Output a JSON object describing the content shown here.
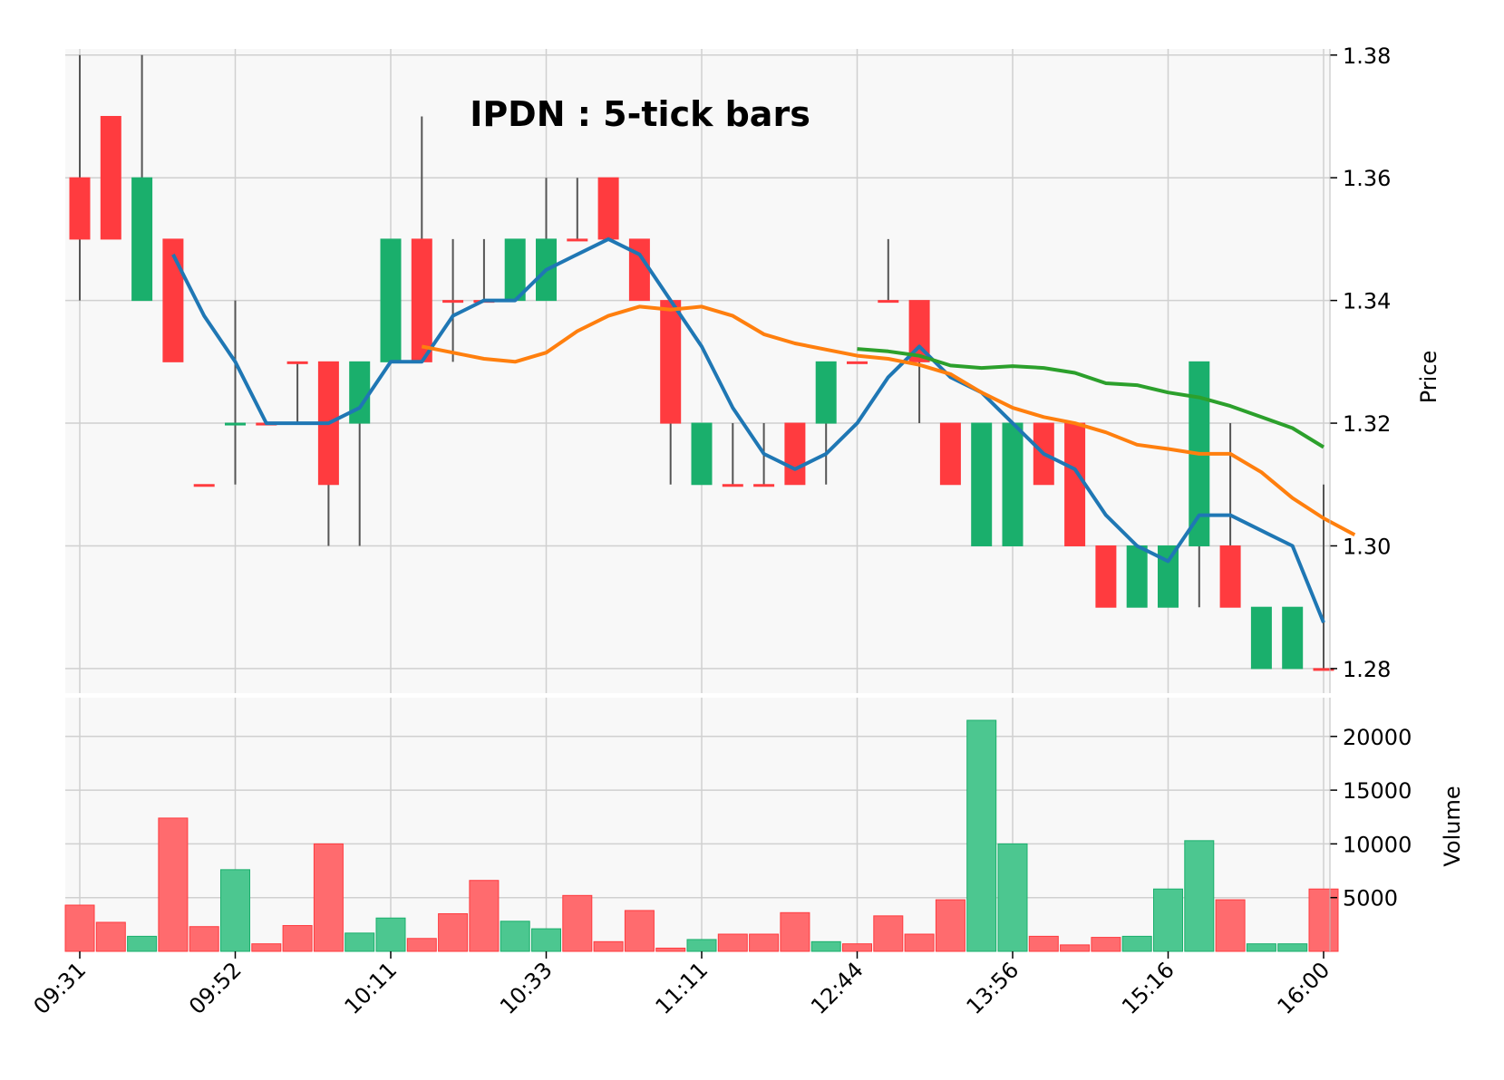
{
  "chart_data": {
    "type": "candlestick",
    "title": "IPDN : 5-tick bars",
    "ylabel_price": "Price",
    "ylabel_volume": "Volume",
    "price_ylim": [
      1.276,
      1.381
    ],
    "volume_ylim": [
      0,
      21500
    ],
    "price_ticks": [
      "1.28",
      "1.30",
      "1.32",
      "1.34",
      "1.36",
      "1.38"
    ],
    "price_tick_values": [
      1.28,
      1.3,
      1.32,
      1.34,
      1.36,
      1.38
    ],
    "volume_ticks": [
      "5000",
      "10000",
      "15000",
      "20000"
    ],
    "volume_tick_values": [
      5000,
      10000,
      15000,
      20000
    ],
    "x_ticks": [
      "09:31",
      "09:52",
      "10:11",
      "10:33",
      "11:11",
      "12:44",
      "13:56",
      "15:16",
      "16:00"
    ],
    "x_tick_index": [
      0,
      5,
      10,
      15,
      20,
      25,
      30,
      35,
      40
    ],
    "grid": true,
    "colors": {
      "up": "#1aaf6c",
      "down": "#ff3b3f",
      "vol_up": "#4cc790",
      "vol_down": "#ff6b6e",
      "wick": "#555555",
      "ma_short": "#1f77b4",
      "ma_mid": "#ff7f0e",
      "ma_long": "#2ca02c",
      "panel_bg": "#f8f8f8",
      "grid": "#d0d0d0"
    },
    "bars": [
      {
        "o": 1.35,
        "h": 1.38,
        "l": 1.34,
        "c": 1.36,
        "up": false,
        "v": 4300
      },
      {
        "o": 1.35,
        "h": 1.37,
        "l": 1.35,
        "c": 1.37,
        "up": false,
        "v": 2700
      },
      {
        "o": 1.36,
        "h": 1.38,
        "l": 1.34,
        "c": 1.34,
        "up": true,
        "v": 1400
      },
      {
        "o": 1.33,
        "h": 1.35,
        "l": 1.33,
        "c": 1.35,
        "up": false,
        "v": 12400
      },
      {
        "o": 1.31,
        "h": 1.31,
        "l": 1.31,
        "c": 1.31,
        "up": false,
        "v": 2300
      },
      {
        "o": 1.32,
        "h": 1.34,
        "l": 1.31,
        "c": 1.32,
        "up": true,
        "v": 7600
      },
      {
        "o": 1.32,
        "h": 1.32,
        "l": 1.32,
        "c": 1.32,
        "up": false,
        "v": 700
      },
      {
        "o": 1.33,
        "h": 1.33,
        "l": 1.32,
        "c": 1.33,
        "up": false,
        "v": 2400
      },
      {
        "o": 1.31,
        "h": 1.33,
        "l": 1.3,
        "c": 1.33,
        "up": false,
        "v": 10000
      },
      {
        "o": 1.33,
        "h": 1.33,
        "l": 1.3,
        "c": 1.32,
        "up": true,
        "v": 1700
      },
      {
        "o": 1.35,
        "h": 1.35,
        "l": 1.33,
        "c": 1.33,
        "up": true,
        "v": 3100
      },
      {
        "o": 1.33,
        "h": 1.37,
        "l": 1.33,
        "c": 1.35,
        "up": false,
        "v": 1200
      },
      {
        "o": 1.34,
        "h": 1.35,
        "l": 1.33,
        "c": 1.34,
        "up": false,
        "v": 3500
      },
      {
        "o": 1.34,
        "h": 1.35,
        "l": 1.34,
        "c": 1.34,
        "up": false,
        "v": 6600
      },
      {
        "o": 1.35,
        "h": 1.35,
        "l": 1.34,
        "c": 1.34,
        "up": true,
        "v": 2800
      },
      {
        "o": 1.35,
        "h": 1.36,
        "l": 1.34,
        "c": 1.34,
        "up": true,
        "v": 2100
      },
      {
        "o": 1.35,
        "h": 1.36,
        "l": 1.35,
        "c": 1.35,
        "up": false,
        "v": 5200
      },
      {
        "o": 1.35,
        "h": 1.36,
        "l": 1.35,
        "c": 1.36,
        "up": false,
        "v": 900
      },
      {
        "o": 1.34,
        "h": 1.35,
        "l": 1.34,
        "c": 1.35,
        "up": false,
        "v": 3800
      },
      {
        "o": 1.32,
        "h": 1.34,
        "l": 1.31,
        "c": 1.34,
        "up": false,
        "v": 300
      },
      {
        "o": 1.32,
        "h": 1.32,
        "l": 1.31,
        "c": 1.31,
        "up": true,
        "v": 1100
      },
      {
        "o": 1.31,
        "h": 1.32,
        "l": 1.31,
        "c": 1.31,
        "up": false,
        "v": 1600
      },
      {
        "o": 1.31,
        "h": 1.32,
        "l": 1.31,
        "c": 1.31,
        "up": false,
        "v": 1600
      },
      {
        "o": 1.31,
        "h": 1.32,
        "l": 1.31,
        "c": 1.32,
        "up": false,
        "v": 3600
      },
      {
        "o": 1.33,
        "h": 1.33,
        "l": 1.31,
        "c": 1.32,
        "up": true,
        "v": 900
      },
      {
        "o": 1.33,
        "h": 1.33,
        "l": 1.33,
        "c": 1.33,
        "up": false,
        "v": 700
      },
      {
        "o": 1.34,
        "h": 1.35,
        "l": 1.34,
        "c": 1.34,
        "up": false,
        "v": 3300
      },
      {
        "o": 1.33,
        "h": 1.34,
        "l": 1.32,
        "c": 1.34,
        "up": false,
        "v": 1600
      },
      {
        "o": 1.31,
        "h": 1.32,
        "l": 1.31,
        "c": 1.32,
        "up": false,
        "v": 4800
      },
      {
        "o": 1.32,
        "h": 1.32,
        "l": 1.3,
        "c": 1.3,
        "up": true,
        "v": 21500
      },
      {
        "o": 1.32,
        "h": 1.32,
        "l": 1.3,
        "c": 1.3,
        "up": true,
        "v": 10000
      },
      {
        "o": 1.31,
        "h": 1.32,
        "l": 1.31,
        "c": 1.32,
        "up": false,
        "v": 1400
      },
      {
        "o": 1.3,
        "h": 1.32,
        "l": 1.3,
        "c": 1.32,
        "up": false,
        "v": 600
      },
      {
        "o": 1.29,
        "h": 1.3,
        "l": 1.29,
        "c": 1.3,
        "up": false,
        "v": 1300
      },
      {
        "o": 1.3,
        "h": 1.3,
        "l": 1.29,
        "c": 1.29,
        "up": true,
        "v": 1400
      },
      {
        "o": 1.3,
        "h": 1.3,
        "l": 1.29,
        "c": 1.29,
        "up": true,
        "v": 5800
      },
      {
        "o": 1.33,
        "h": 1.33,
        "l": 1.29,
        "c": 1.3,
        "up": true,
        "v": 10300
      },
      {
        "o": 1.29,
        "h": 1.32,
        "l": 1.29,
        "c": 1.3,
        "up": false,
        "v": 4800
      },
      {
        "o": 1.29,
        "h": 1.29,
        "l": 1.28,
        "c": 1.28,
        "up": true,
        "v": 700
      },
      {
        "o": 1.29,
        "h": 1.29,
        "l": 1.28,
        "c": 1.28,
        "up": true,
        "v": 700
      },
      {
        "o": 1.28,
        "h": 1.31,
        "l": 1.28,
        "c": 1.28,
        "up": false,
        "v": 5800
      }
    ],
    "series": [
      {
        "key": "ma_short",
        "start_index": 3,
        "values": [
          1.3475,
          1.3375,
          1.33,
          1.32,
          1.32,
          1.32,
          1.3225,
          1.33,
          1.33,
          1.3375,
          1.34,
          1.34,
          1.345,
          1.3475,
          1.35,
          1.3475,
          1.34,
          1.3325,
          1.3225,
          1.315,
          1.3125,
          1.315,
          1.32,
          1.3275,
          1.3325,
          1.3275,
          1.325,
          1.32,
          1.315,
          1.3125,
          1.305,
          1.3,
          1.2975,
          1.305,
          1.305,
          1.3025,
          1.3,
          1.2875
        ]
      },
      {
        "key": "ma_mid",
        "start_index": 11,
        "values": [
          1.3325,
          1.3315,
          1.3305,
          1.33,
          1.3315,
          1.335,
          1.3375,
          1.339,
          1.3385,
          1.339,
          1.3375,
          1.3345,
          1.333,
          1.332,
          1.331,
          1.3305,
          1.3295,
          1.328,
          1.325,
          1.3225,
          1.321,
          1.32,
          1.3185,
          1.3165,
          1.3158,
          1.315,
          1.315,
          1.312,
          1.3078,
          1.3045,
          1.3018
        ]
      },
      {
        "key": "ma_long",
        "start_index": 25,
        "values": [
          1.3321,
          1.3317,
          1.331,
          1.3294,
          1.329,
          1.3293,
          1.329,
          1.3282,
          1.3265,
          1.3262,
          1.325,
          1.3242,
          1.3228,
          1.321,
          1.3192,
          1.3161
        ]
      }
    ]
  }
}
